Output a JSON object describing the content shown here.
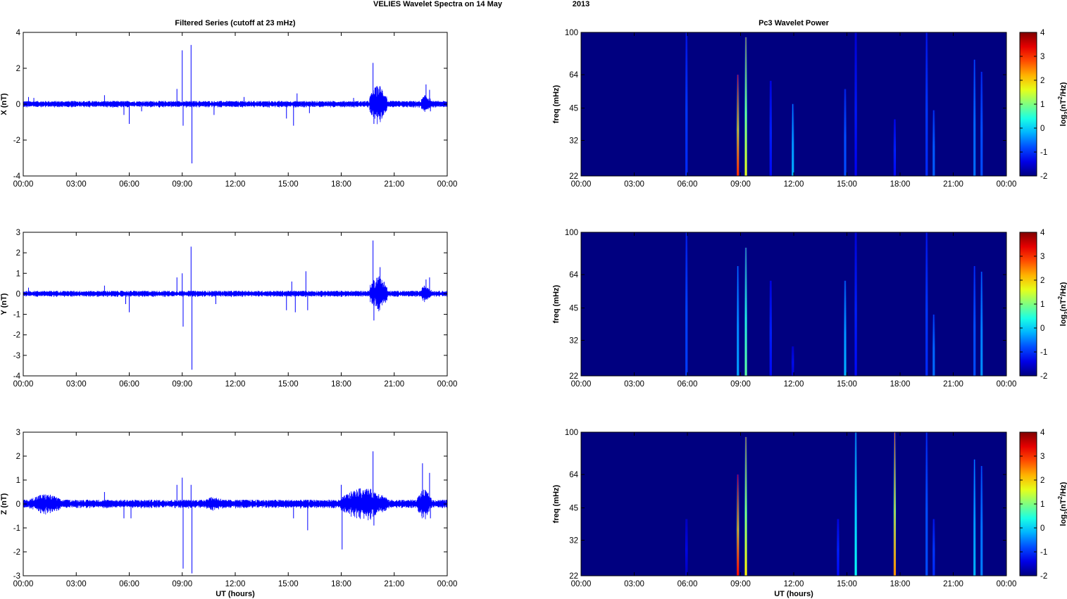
{
  "figure": {
    "suptitle_left": "VELIES Wavelet Spectra on 14 May",
    "suptitle_right": "2013"
  },
  "colors": {
    "trace": "#0000ff",
    "axis": "#000000",
    "colormap": "jet"
  },
  "chart_data": [
    {
      "type": "line",
      "panel": "x-filtered",
      "title": "Filtered Series (cutoff at 23 mHz)",
      "xlabel": "",
      "ylabel": "X (nT)",
      "x_ticks": [
        "00:00",
        "03:00",
        "06:00",
        "09:00",
        "12:00",
        "15:00",
        "18:00",
        "21:00",
        "00:00"
      ],
      "x_range_hours": [
        0,
        24
      ],
      "ylim": [
        -4,
        4
      ],
      "y_ticks": [
        "4",
        "2",
        "0",
        "-2",
        "-4"
      ],
      "noise_amplitude": 0.12,
      "spikes": [
        {
          "t": 0.3,
          "v": 0.4
        },
        {
          "t": 0.6,
          "v": 0.35
        },
        {
          "t": 4.6,
          "v": 0.5
        },
        {
          "t": 5.7,
          "v": -0.6
        },
        {
          "t": 6.0,
          "v": -1.1
        },
        {
          "t": 6.7,
          "v": -0.4
        },
        {
          "t": 8.7,
          "v": 0.85
        },
        {
          "t": 9.0,
          "v": 3.0
        },
        {
          "t": 9.05,
          "v": -1.2
        },
        {
          "t": 9.5,
          "v": 3.3
        },
        {
          "t": 9.55,
          "v": -3.3
        },
        {
          "t": 10.8,
          "v": -0.6
        },
        {
          "t": 12.5,
          "v": 0.4
        },
        {
          "t": 14.9,
          "v": -0.8
        },
        {
          "t": 15.3,
          "v": -1.2
        },
        {
          "t": 15.5,
          "v": 0.6
        },
        {
          "t": 16.2,
          "v": -0.5
        },
        {
          "t": 18.7,
          "v": 0.35
        },
        {
          "t": 19.8,
          "v": 2.3
        },
        {
          "t": 19.85,
          "v": -1.1
        },
        {
          "t": 20.2,
          "v": 1.0
        },
        {
          "t": 20.4,
          "v": -0.6
        },
        {
          "t": 22.8,
          "v": 1.1
        },
        {
          "t": 23.0,
          "v": 0.8
        },
        {
          "t": 23.05,
          "v": -0.4
        }
      ],
      "bursts": [
        {
          "start": 19.6,
          "end": 20.6,
          "amp": 0.7
        },
        {
          "start": 22.5,
          "end": 23.1,
          "amp": 0.35
        }
      ]
    },
    {
      "type": "line",
      "panel": "y-filtered",
      "title": "",
      "xlabel": "",
      "ylabel": "Y (nT)",
      "x_ticks": [
        "00:00",
        "03:00",
        "06:00",
        "09:00",
        "12:00",
        "15:00",
        "18:00",
        "21:00",
        "00:00"
      ],
      "x_range_hours": [
        0,
        24
      ],
      "ylim": [
        -4,
        3
      ],
      "y_ticks": [
        "3",
        "2",
        "1",
        "0",
        "-1",
        "-2",
        "-3",
        "-4"
      ],
      "noise_amplitude": 0.1,
      "spikes": [
        {
          "t": 0.3,
          "v": 0.3
        },
        {
          "t": 4.6,
          "v": 0.4
        },
        {
          "t": 5.8,
          "v": -0.5
        },
        {
          "t": 6.0,
          "v": -0.9
        },
        {
          "t": 8.7,
          "v": 0.8
        },
        {
          "t": 9.0,
          "v": 1.0
        },
        {
          "t": 9.05,
          "v": -1.6
        },
        {
          "t": 9.5,
          "v": 2.3
        },
        {
          "t": 9.55,
          "v": -3.7
        },
        {
          "t": 10.9,
          "v": -0.5
        },
        {
          "t": 14.9,
          "v": -0.8
        },
        {
          "t": 15.2,
          "v": 0.6
        },
        {
          "t": 15.4,
          "v": -0.9
        },
        {
          "t": 16.0,
          "v": 1.1
        },
        {
          "t": 16.1,
          "v": -0.8
        },
        {
          "t": 19.8,
          "v": 2.6
        },
        {
          "t": 19.85,
          "v": -1.3
        },
        {
          "t": 20.2,
          "v": 1.3
        },
        {
          "t": 22.8,
          "v": 0.7
        },
        {
          "t": 23.0,
          "v": 0.8
        }
      ],
      "bursts": [
        {
          "start": 19.6,
          "end": 20.6,
          "amp": 0.6
        },
        {
          "start": 22.5,
          "end": 23.1,
          "amp": 0.3
        }
      ]
    },
    {
      "type": "line",
      "panel": "z-filtered",
      "title": "",
      "xlabel": "UT (hours)",
      "ylabel": "Z (nT)",
      "x_ticks": [
        "00:00",
        "03:00",
        "06:00",
        "09:00",
        "12:00",
        "15:00",
        "18:00",
        "21:00",
        "00:00"
      ],
      "x_range_hours": [
        0,
        24
      ],
      "ylim": [
        -3,
        3
      ],
      "y_ticks": [
        "3",
        "2",
        "1",
        "0",
        "-1",
        "-2",
        "-3"
      ],
      "noise_amplitude": 0.12,
      "spikes": [
        {
          "t": 4.6,
          "v": 0.5
        },
        {
          "t": 5.7,
          "v": -0.6
        },
        {
          "t": 6.1,
          "v": -0.6
        },
        {
          "t": 8.7,
          "v": 0.8
        },
        {
          "t": 9.0,
          "v": 1.1
        },
        {
          "t": 9.05,
          "v": -2.7
        },
        {
          "t": 9.5,
          "v": 0.8
        },
        {
          "t": 9.55,
          "v": -2.9
        },
        {
          "t": 15.3,
          "v": -0.6
        },
        {
          "t": 16.1,
          "v": -1.1
        },
        {
          "t": 18.0,
          "v": 0.8
        },
        {
          "t": 18.05,
          "v": -1.9
        },
        {
          "t": 19.8,
          "v": 2.2
        },
        {
          "t": 19.85,
          "v": -0.9
        },
        {
          "t": 22.6,
          "v": 1.7
        },
        {
          "t": 23.0,
          "v": 1.3
        },
        {
          "t": 23.05,
          "v": -0.6
        }
      ],
      "bursts": [
        {
          "start": 0.3,
          "end": 2.2,
          "amp": 0.28
        },
        {
          "start": 10.0,
          "end": 11.5,
          "amp": 0.2
        },
        {
          "start": 18.0,
          "end": 20.6,
          "amp": 0.45
        },
        {
          "start": 22.3,
          "end": 23.1,
          "amp": 0.4
        }
      ]
    },
    {
      "type": "heatmap",
      "panel": "x-wavelet",
      "title": "Pc3 Wavelet Power",
      "xlabel": "",
      "ylabel": "freq (mHz)",
      "x_ticks": [
        "00:00",
        "03:00",
        "06:00",
        "09:00",
        "12:00",
        "15:00",
        "18:00",
        "21:00",
        "00:00"
      ],
      "y_scale": "log",
      "y_range_mHz": [
        22,
        100
      ],
      "y_ticks": [
        "100",
        "64",
        "45",
        "32",
        "22"
      ],
      "background_value": -2,
      "colorbar": {
        "label_base": "log",
        "label_sub": "2",
        "label_mid": "(nT",
        "label_sup": "2",
        "label_end": "/Hz)",
        "range": [
          -2,
          4
        ],
        "ticks": [
          "4",
          "3",
          "2",
          "1",
          "0",
          "-1",
          "-2"
        ]
      },
      "events": [
        {
          "t": 5.95,
          "fmax": 100,
          "peak": -1.0
        },
        {
          "t": 8.85,
          "fmax": 64,
          "peak": 3.0
        },
        {
          "t": 9.3,
          "fmax": 95,
          "peak": 1.6
        },
        {
          "t": 10.7,
          "fmax": 60,
          "peak": -1.2
        },
        {
          "t": 11.95,
          "fmax": 47,
          "peak": -0.2
        },
        {
          "t": 14.9,
          "fmax": 55,
          "peak": -0.8
        },
        {
          "t": 15.5,
          "fmax": 100,
          "peak": -1.3
        },
        {
          "t": 17.7,
          "fmax": 40,
          "peak": -1.2
        },
        {
          "t": 19.5,
          "fmax": 100,
          "peak": -1.0
        },
        {
          "t": 19.9,
          "fmax": 44,
          "peak": -0.7
        },
        {
          "t": 22.2,
          "fmax": 75,
          "peak": -0.6
        },
        {
          "t": 22.6,
          "fmax": 66,
          "peak": -0.8
        }
      ]
    },
    {
      "type": "heatmap",
      "panel": "y-wavelet",
      "title": "",
      "xlabel": "",
      "ylabel": "freq (mHz)",
      "x_ticks": [
        "00:00",
        "03:00",
        "06:00",
        "09:00",
        "12:00",
        "15:00",
        "18:00",
        "21:00",
        "00:00"
      ],
      "y_scale": "log",
      "y_range_mHz": [
        22,
        100
      ],
      "y_ticks": [
        "100",
        "64",
        "45",
        "32",
        "22"
      ],
      "background_value": -2,
      "colorbar": {
        "label_base": "log",
        "label_sub": "2",
        "label_mid": "(nT",
        "label_sup": "2",
        "label_end": "/Hz)",
        "range": [
          -2,
          4
        ],
        "ticks": [
          "4",
          "3",
          "2",
          "1",
          "0",
          "-1",
          "-2"
        ]
      },
      "events": [
        {
          "t": 5.95,
          "fmax": 100,
          "peak": -0.9
        },
        {
          "t": 8.85,
          "fmax": 70,
          "peak": -0.3
        },
        {
          "t": 9.3,
          "fmax": 85,
          "peak": 0.8
        },
        {
          "t": 10.7,
          "fmax": 60,
          "peak": -1.2
        },
        {
          "t": 11.95,
          "fmax": 30,
          "peak": -1.5
        },
        {
          "t": 14.9,
          "fmax": 60,
          "peak": -0.2
        },
        {
          "t": 15.5,
          "fmax": 100,
          "peak": -1.2
        },
        {
          "t": 19.5,
          "fmax": 100,
          "peak": -1.0
        },
        {
          "t": 19.9,
          "fmax": 42,
          "peak": -0.6
        },
        {
          "t": 22.2,
          "fmax": 70,
          "peak": -0.8
        },
        {
          "t": 22.6,
          "fmax": 66,
          "peak": -0.4
        }
      ]
    },
    {
      "type": "heatmap",
      "panel": "z-wavelet",
      "title": "",
      "xlabel": "UT (hours)",
      "ylabel": "freq (mHz)",
      "x_ticks": [
        "00:00",
        "03:00",
        "06:00",
        "09:00",
        "12:00",
        "15:00",
        "18:00",
        "21:00",
        "00:00"
      ],
      "y_scale": "log",
      "y_range_mHz": [
        22,
        100
      ],
      "y_ticks": [
        "100",
        "64",
        "45",
        "32",
        "22"
      ],
      "background_value": -2,
      "colorbar": {
        "label_base": "log",
        "label_sub": "2",
        "label_mid": "(nT",
        "label_sup": "2",
        "label_end": "/Hz)",
        "range": [
          -2,
          4
        ],
        "ticks": [
          "4",
          "3",
          "2",
          "1",
          "0",
          "-1",
          "-2"
        ]
      },
      "events": [
        {
          "t": 5.95,
          "fmax": 40,
          "peak": -1.6
        },
        {
          "t": 8.85,
          "fmax": 64,
          "peak": 3.2
        },
        {
          "t": 9.3,
          "fmax": 95,
          "peak": 1.8
        },
        {
          "t": 14.5,
          "fmax": 40,
          "peak": -1.2
        },
        {
          "t": 15.5,
          "fmax": 100,
          "peak": 0.3
        },
        {
          "t": 17.7,
          "fmax": 100,
          "peak": 2.4
        },
        {
          "t": 19.5,
          "fmax": 100,
          "peak": -0.8
        },
        {
          "t": 19.9,
          "fmax": 40,
          "peak": -1.0
        },
        {
          "t": 22.2,
          "fmax": 75,
          "peak": -0.2
        },
        {
          "t": 22.6,
          "fmax": 70,
          "peak": -0.5
        }
      ]
    }
  ]
}
